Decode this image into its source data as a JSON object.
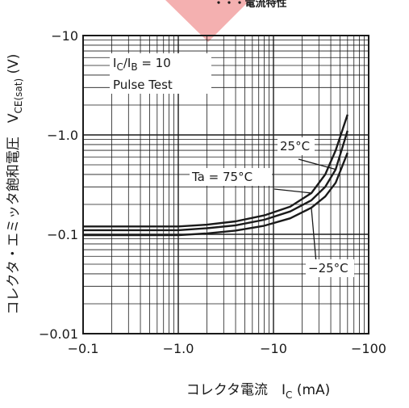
{
  "header_fragment": "・・・電流特性",
  "chart_data": {
    "type": "line",
    "title": "",
    "xlabel": "コレクタ電流　I",
    "xlabel_sub": "C",
    "xlabel_unit": " (mA)",
    "ylabel": "コレクタ・エミッタ飽和電圧　V",
    "ylabel_sub": "CE(sat)",
    "ylabel_unit": " (V)",
    "x_scale": "log",
    "y_scale": "log",
    "x_axis": "magnitude of collector current (mA), drawn negative",
    "y_axis": "magnitude of saturation voltage (V), drawn negative",
    "xlim": [
      0.1,
      100
    ],
    "ylim": [
      0.01,
      10
    ],
    "x_ticks": [
      {
        "value": 0.1,
        "label": "−0.1"
      },
      {
        "value": 1,
        "label": "−1.0"
      },
      {
        "value": 10,
        "label": "−10"
      },
      {
        "value": 100,
        "label": "−100"
      }
    ],
    "y_ticks": [
      {
        "value": 10,
        "label": "−10"
      },
      {
        "value": 1,
        "label": "−1.0"
      },
      {
        "value": 0.1,
        "label": "−0.1"
      },
      {
        "value": 0.01,
        "label": "−0.01"
      }
    ],
    "grid": true,
    "conditions": {
      "line1_main": "I",
      "line1_sub1": "C",
      "line1_mid": "/I",
      "line1_sub2": "B",
      "line1_end": " = 10",
      "line2": "Pulse Test"
    },
    "series": [
      {
        "name": "Ta = 75°C",
        "x": [
          0.1,
          0.3,
          1,
          2,
          4,
          8,
          15,
          25,
          35,
          45,
          60
        ],
        "y": [
          0.12,
          0.12,
          0.12,
          0.125,
          0.135,
          0.155,
          0.19,
          0.26,
          0.4,
          0.7,
          1.6
        ]
      },
      {
        "name": "25°C",
        "x": [
          0.1,
          0.3,
          1,
          2,
          4,
          8,
          15,
          25,
          35,
          45,
          60
        ],
        "y": [
          0.11,
          0.11,
          0.11,
          0.115,
          0.123,
          0.14,
          0.17,
          0.22,
          0.3,
          0.45,
          1.1
        ]
      },
      {
        "name": "−25°C",
        "x": [
          0.1,
          0.3,
          1,
          2,
          4,
          8,
          15,
          25,
          35,
          45,
          60
        ],
        "y": [
          0.098,
          0.098,
          0.098,
          0.102,
          0.109,
          0.122,
          0.145,
          0.185,
          0.24,
          0.33,
          0.66
        ]
      }
    ],
    "annotations": [
      {
        "series": "25°C",
        "text": "25°C"
      },
      {
        "series": "Ta = 75°C",
        "text": "Ta = 75°C"
      },
      {
        "series": "−25°C",
        "text": "−25°C"
      }
    ]
  }
}
